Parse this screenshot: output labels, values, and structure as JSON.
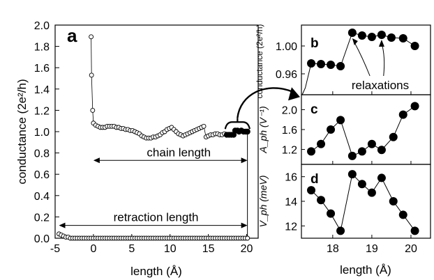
{
  "chart_data": [
    {
      "type": "scatter",
      "panel_label": "a",
      "xlabel": "length (Å)",
      "ylabel": "conductance (2e²/h)",
      "xlim": [
        -5,
        21.5
      ],
      "ylim": [
        0.0,
        2.0
      ],
      "x_ticks": [
        -5,
        0,
        5,
        10,
        15,
        20
      ],
      "y_ticks": [
        0.0,
        0.2,
        0.4,
        0.6,
        0.8,
        1.0,
        1.2,
        1.4,
        1.6,
        1.8,
        2.0
      ],
      "grid": false,
      "series": [
        {
          "marker": "open-circle",
          "points": [
            [
              -4.5,
              0.04
            ],
            [
              -4.2,
              0.03
            ],
            [
              -3.9,
              0.02
            ],
            [
              -3.6,
              0.01
            ],
            [
              -3.3,
              0.01
            ],
            [
              -3.0,
              0.0
            ],
            [
              -2.7,
              0.0
            ],
            [
              -2.4,
              0.0
            ],
            [
              -2.1,
              0.0
            ],
            [
              -1.8,
              0.0
            ],
            [
              -1.5,
              0.0
            ],
            [
              -1.2,
              0.0
            ],
            [
              -0.9,
              0.0
            ],
            [
              -0.6,
              0.0
            ],
            [
              -0.3,
              0.0
            ],
            [
              0.0,
              0.0
            ],
            [
              0.3,
              0.0
            ],
            [
              0.6,
              0.0
            ],
            [
              0.9,
              0.0
            ],
            [
              1.2,
              0.0
            ],
            [
              1.5,
              0.0
            ],
            [
              1.8,
              0.0
            ],
            [
              2.1,
              0.0
            ],
            [
              2.4,
              0.0
            ],
            [
              2.7,
              0.0
            ],
            [
              3.0,
              0.0
            ],
            [
              3.3,
              0.0
            ],
            [
              3.6,
              0.0
            ],
            [
              3.9,
              0.0
            ],
            [
              4.2,
              0.0
            ],
            [
              4.5,
              0.0
            ],
            [
              4.8,
              0.0
            ],
            [
              5.1,
              0.0
            ],
            [
              5.4,
              0.0
            ],
            [
              5.7,
              0.0
            ],
            [
              6.0,
              0.0
            ],
            [
              6.3,
              0.0
            ],
            [
              6.6,
              0.0
            ],
            [
              6.9,
              0.0
            ],
            [
              7.2,
              0.0
            ],
            [
              7.5,
              0.0
            ],
            [
              7.8,
              0.0
            ],
            [
              8.1,
              0.0
            ],
            [
              8.4,
              0.0
            ],
            [
              8.7,
              0.0
            ],
            [
              9.0,
              0.0
            ],
            [
              9.3,
              0.0
            ],
            [
              9.6,
              0.0
            ],
            [
              9.9,
              0.0
            ],
            [
              10.2,
              0.0
            ],
            [
              10.5,
              0.0
            ],
            [
              10.8,
              0.0
            ],
            [
              11.1,
              0.0
            ],
            [
              11.4,
              0.0
            ],
            [
              11.7,
              0.0
            ],
            [
              12.0,
              0.0
            ],
            [
              12.3,
              0.0
            ],
            [
              12.6,
              0.0
            ],
            [
              12.9,
              0.0
            ],
            [
              13.2,
              0.0
            ],
            [
              13.5,
              0.0
            ],
            [
              13.8,
              0.0
            ],
            [
              14.1,
              0.0
            ],
            [
              14.4,
              0.0
            ],
            [
              14.7,
              0.0
            ],
            [
              15.0,
              0.0
            ],
            [
              15.3,
              0.0
            ],
            [
              15.6,
              0.0
            ],
            [
              15.9,
              0.0
            ],
            [
              16.2,
              0.0
            ],
            [
              16.5,
              0.0
            ],
            [
              16.8,
              0.0
            ],
            [
              17.1,
              0.0
            ],
            [
              17.4,
              0.0
            ],
            [
              17.7,
              0.0
            ],
            [
              18.0,
              0.0
            ],
            [
              18.3,
              0.0
            ],
            [
              18.6,
              0.0
            ],
            [
              18.9,
              0.0
            ],
            [
              19.2,
              0.0
            ],
            [
              19.5,
              0.0
            ],
            [
              19.8,
              0.0
            ],
            [
              20.1,
              0.0
            ],
            [
              -0.3,
              1.89
            ],
            [
              -0.25,
              1.53
            ],
            [
              -0.1,
              1.2
            ],
            [
              0.0,
              1.08
            ],
            [
              0.3,
              1.06
            ],
            [
              0.6,
              1.05
            ],
            [
              0.9,
              1.04
            ],
            [
              1.2,
              1.04
            ],
            [
              1.5,
              1.04
            ],
            [
              1.8,
              1.05
            ],
            [
              2.1,
              1.05
            ],
            [
              2.4,
              1.05
            ],
            [
              2.7,
              1.05
            ],
            [
              3.0,
              1.04
            ],
            [
              3.3,
              1.04
            ],
            [
              3.6,
              1.03
            ],
            [
              3.9,
              1.03
            ],
            [
              4.2,
              1.02
            ],
            [
              4.5,
              1.02
            ],
            [
              4.8,
              1.01
            ],
            [
              5.1,
              1.01
            ],
            [
              5.4,
              1.0
            ],
            [
              5.7,
              0.99
            ],
            [
              6.0,
              0.98
            ],
            [
              6.3,
              0.96
            ],
            [
              6.6,
              0.95
            ],
            [
              6.9,
              0.94
            ],
            [
              7.2,
              0.94
            ],
            [
              7.5,
              0.94
            ],
            [
              7.8,
              0.95
            ],
            [
              8.1,
              0.95
            ],
            [
              8.4,
              0.96
            ],
            [
              8.7,
              0.97
            ],
            [
              9.0,
              0.99
            ],
            [
              9.3,
              1.0
            ],
            [
              9.6,
              1.02
            ],
            [
              9.9,
              1.03
            ],
            [
              10.2,
              1.04
            ],
            [
              10.5,
              1.02
            ],
            [
              10.8,
              1.0
            ],
            [
              11.1,
              0.98
            ],
            [
              11.4,
              0.97
            ],
            [
              11.7,
              0.96
            ],
            [
              12.0,
              0.97
            ],
            [
              12.3,
              0.98
            ],
            [
              12.6,
              0.99
            ],
            [
              12.9,
              1.0
            ],
            [
              13.2,
              1.01
            ],
            [
              13.5,
              1.02
            ],
            [
              13.8,
              1.03
            ],
            [
              14.1,
              1.04
            ],
            [
              14.4,
              1.05
            ],
            [
              14.7,
              0.95
            ],
            [
              15.0,
              0.96
            ],
            [
              15.3,
              0.97
            ],
            [
              15.6,
              0.97
            ],
            [
              15.9,
              0.98
            ],
            [
              16.2,
              0.98
            ],
            [
              16.5,
              0.97
            ],
            [
              16.8,
              0.97
            ],
            [
              17.1,
              0.98
            ]
          ]
        },
        {
          "marker": "filled-circle",
          "points": [
            [
              17.4,
              0.97
            ],
            [
              17.7,
              0.97
            ],
            [
              18.0,
              0.97
            ],
            [
              18.3,
              0.97
            ],
            [
              18.5,
              1.01
            ],
            [
              18.8,
              1.01
            ],
            [
              19.0,
              1.0
            ],
            [
              19.3,
              1.01
            ],
            [
              19.6,
              1.0
            ],
            [
              19.9,
              1.0
            ],
            [
              20.1,
              1.0
            ]
          ]
        }
      ],
      "annotations": [
        {
          "text": "chain length",
          "from_x": 0.0,
          "to_x": 20.1,
          "y": 0.73
        },
        {
          "text": "retraction length",
          "from_x": -4.5,
          "to_x": 20.1,
          "y": 0.12
        }
      ]
    },
    {
      "type": "line",
      "panel_label": "b",
      "ylabel": "conductance (2e²/h)",
      "xlim": [
        17.2,
        20.5
      ],
      "ylim": [
        0.93,
        1.03
      ],
      "y_ticks": [
        0.96,
        1.0
      ],
      "annotation": "relaxations",
      "lead_in_y": [
        0.93,
        0.94,
        0.975
      ],
      "series": [
        {
          "x": [
            17.45,
            17.7,
            17.95,
            18.2,
            18.5,
            18.75,
            19.0,
            19.25,
            19.5,
            19.8,
            20.1
          ],
          "y": [
            0.975,
            0.974,
            0.973,
            0.971,
            1.019,
            1.015,
            1.013,
            1.016,
            1.012,
            1.011,
            1.0
          ]
        }
      ]
    },
    {
      "type": "line",
      "panel_label": "c",
      "ylabel": "A_ph (V⁻¹)",
      "xlim": [
        17.2,
        20.5
      ],
      "ylim": [
        0.9,
        2.3
      ],
      "y_ticks": [
        1.2,
        1.6,
        2.0
      ],
      "series": [
        {
          "x": [
            17.45,
            17.7,
            17.95,
            18.2,
            18.5,
            18.75,
            19.0,
            19.25,
            19.55,
            19.8,
            20.1
          ],
          "y": [
            1.16,
            1.31,
            1.6,
            1.79,
            1.07,
            1.16,
            1.31,
            1.19,
            1.45,
            1.9,
            2.07
          ]
        }
      ]
    },
    {
      "type": "line",
      "panel_label": "d",
      "ylabel": "V_ph (meV)",
      "xlabel": "length (Å)",
      "xlim": [
        17.2,
        20.5
      ],
      "ylim": [
        11,
        17
      ],
      "y_ticks": [
        12,
        14,
        16
      ],
      "x_ticks": [
        18,
        19,
        20
      ],
      "series": [
        {
          "x": [
            17.45,
            17.7,
            17.95,
            18.2,
            18.5,
            18.75,
            19.0,
            19.25,
            19.55,
            19.8,
            20.1
          ],
          "y": [
            14.9,
            14.1,
            13.0,
            11.6,
            16.2,
            15.4,
            14.7,
            15.9,
            14.0,
            12.9,
            11.6
          ]
        }
      ]
    }
  ]
}
